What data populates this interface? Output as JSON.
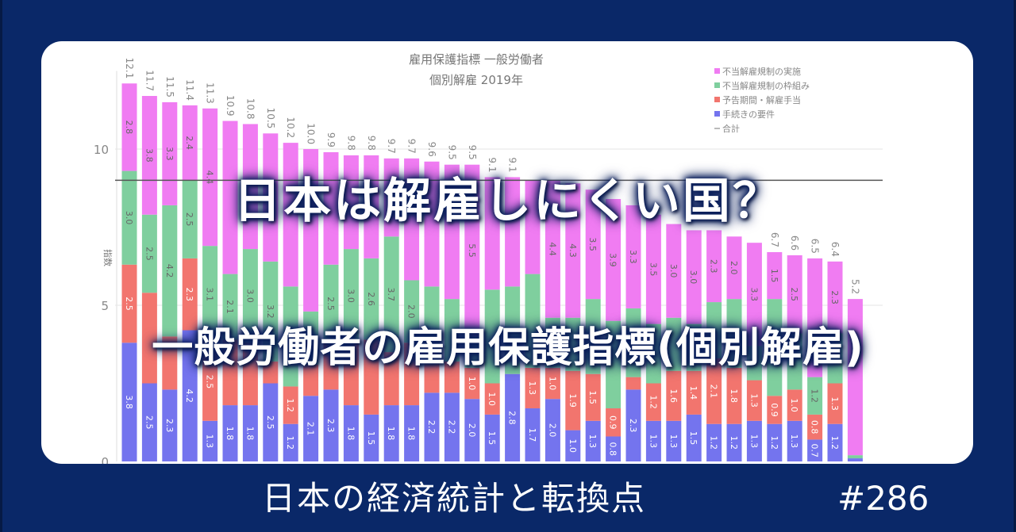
{
  "headline": "日本は解雇しにくい国？",
  "subheadline": "一般労働者の雇用保護指標(個別解雇)",
  "footer": {
    "series_title": "日本の経済統計と転換点",
    "episode": "#286"
  },
  "colors": {
    "background": "#0a2868",
    "enforcement": "#f07cf2",
    "framework": "#7fcf9e",
    "notice_severance": "#f2756e",
    "procedural": "#7474ee",
    "total_line": "#555555"
  },
  "chart_data": {
    "type": "bar",
    "stacked": true,
    "title": "雇用保護指標 一般労働者",
    "subtitle": "個別解雇 2019年",
    "ylabel": "指数",
    "xlabel": "",
    "ylim": [
      0,
      12.5
    ],
    "yticks": [
      0,
      5,
      10
    ],
    "grid": true,
    "legend_position": "top-right",
    "legend": [
      "不当解雇規制の実施",
      "不当解雇規制の枠組み",
      "予告期間・解雇手当",
      "手続きの要件",
      "合計"
    ],
    "reference_line": 9.0,
    "series": [
      {
        "name": "手続きの要件",
        "values": [
          3.8,
          2.5,
          2.3,
          4.2,
          1.3,
          1.8,
          1.8,
          2.5,
          1.2,
          2.1,
          2.3,
          1.8,
          1.5,
          1.8,
          1.8,
          2.2,
          2.2,
          2.0,
          1.5,
          2.8,
          1.7,
          2.0,
          1.0,
          1.3,
          0.8,
          2.3,
          1.3,
          1.3,
          1.5,
          1.2,
          1.2,
          1.3,
          1.2,
          1.3,
          0.7,
          1.2,
          0.1
        ]
      },
      {
        "name": "予告期間・解雇手当",
        "values": [
          2.5,
          2.9,
          1.7,
          2.3,
          2.5,
          2.1,
          2.0,
          0.7,
          1.2,
          1.0,
          1.5,
          2.0,
          2.4,
          1.7,
          2.0,
          1.0,
          1.0,
          1.0,
          1.0,
          0.0,
          1.3,
          1.0,
          1.9,
          1.5,
          0.9,
          0.4,
          1.2,
          1.6,
          1.4,
          2.1,
          1.8,
          1.3,
          0.9,
          1.0,
          0.8,
          1.3,
          0.0
        ]
      },
      {
        "name": "不当解雇規制の枠組み",
        "values": [
          3.0,
          2.5,
          4.2,
          2.5,
          3.1,
          2.1,
          3.0,
          3.2,
          3.2,
          1.7,
          2.5,
          3.0,
          2.6,
          3.7,
          2.0,
          2.4,
          2.0,
          1.0,
          3.0,
          2.8,
          3.0,
          1.6,
          1.7,
          2.4,
          2.8,
          2.2,
          1.9,
          1.7,
          1.5,
          1.8,
          2.2,
          1.1,
          3.1,
          1.8,
          1.2,
          1.6,
          0.1
        ]
      },
      {
        "name": "不当解雇規制の実施",
        "values": [
          2.8,
          3.8,
          3.3,
          2.4,
          4.4,
          4.9,
          4.0,
          4.1,
          4.6,
          5.2,
          3.6,
          3.0,
          3.3,
          2.5,
          3.9,
          4.0,
          4.3,
          5.5,
          3.6,
          3.5,
          3.0,
          4.4,
          4.3,
          3.5,
          3.9,
          3.3,
          3.5,
          3.0,
          3.0,
          2.3,
          2.0,
          3.3,
          1.5,
          2.5,
          3.8,
          2.3,
          5.0
        ]
      }
    ],
    "totals": [
      12.1,
      11.7,
      11.5,
      11.4,
      11.3,
      10.9,
      10.8,
      10.5,
      10.2,
      10.0,
      9.9,
      9.8,
      9.8,
      9.7,
      9.7,
      9.6,
      9.5,
      9.5,
      9.1,
      9.1,
      9.0,
      9.0,
      8.9,
      8.7,
      8.4,
      8.2,
      7.9,
      7.6,
      7.4,
      7.4,
      7.2,
      7.0,
      6.7,
      6.6,
      6.5,
      6.4,
      5.2
    ]
  }
}
